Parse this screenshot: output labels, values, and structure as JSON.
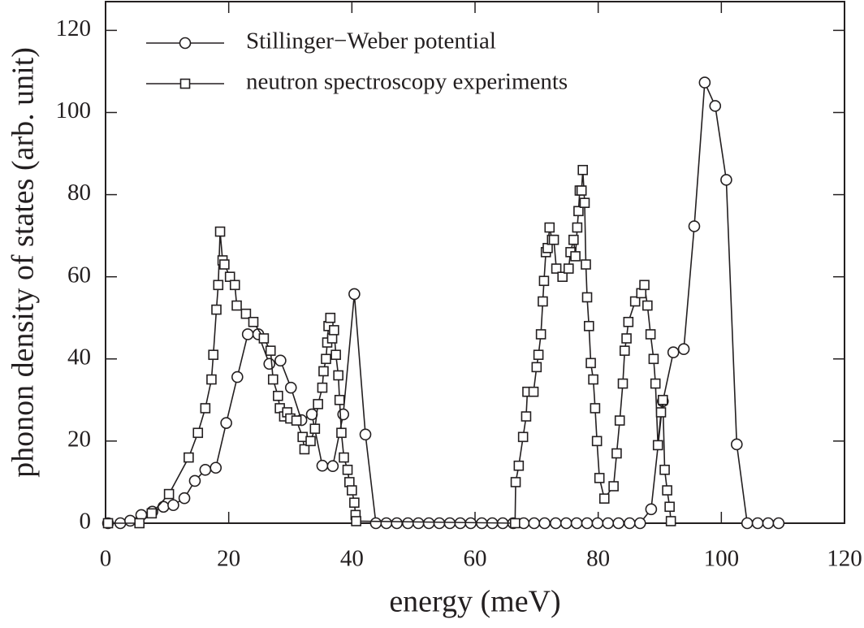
{
  "chart_data": {
    "type": "line",
    "xlabel": "energy (meV)",
    "ylabel": "phonon density of states (arb. unit)",
    "xlim": [
      0,
      120
    ],
    "ylim": [
      0,
      127
    ],
    "xticks": [
      0,
      20,
      40,
      60,
      80,
      100,
      120
    ],
    "yticks": [
      0,
      20,
      40,
      60,
      80,
      100,
      120
    ],
    "legend": "upper left",
    "series": [
      {
        "name": "Stillinger−Weber potential",
        "color": "#231f20",
        "marker": "circle",
        "x": [
          0.4,
          2.4,
          4,
          5.8,
          7.6,
          9.4,
          11,
          12.8,
          14.5,
          16.2,
          17.9,
          19.6,
          21.4,
          23.1,
          24.8,
          26.6,
          28.4,
          30.1,
          31.8,
          33.5,
          35.2,
          36.9,
          38.6,
          40.4,
          42.2,
          43.9,
          45.6,
          47.3,
          49.1,
          50.8,
          52.5,
          54.2,
          55.9,
          57.6,
          59.3,
          61.1,
          62.8,
          64.5,
          66.2,
          67.9,
          69.6,
          71.3,
          73.1,
          74.8,
          76.5,
          78.2,
          79.9,
          81.6,
          83.3,
          85.1,
          86.8,
          88.6,
          90.5,
          92.2,
          93.9,
          95.6,
          97.3,
          99,
          100.8,
          102.5,
          104.2,
          105.9,
          107.6,
          109.3
        ],
        "values": [
          0,
          0,
          0.6,
          2,
          2.8,
          4,
          4.4,
          6.1,
          10.3,
          13,
          13.5,
          24.4,
          35.6,
          46,
          46,
          38.8,
          39.6,
          33,
          25.1,
          26.5,
          14,
          13.9,
          26.5,
          55.8,
          21.6,
          0,
          0,
          0,
          0,
          0,
          0,
          0,
          0,
          0,
          0,
          0,
          0,
          0,
          0,
          0,
          0,
          0,
          0,
          0,
          0,
          0,
          0,
          0,
          0,
          0,
          0,
          3.4,
          29.7,
          41.6,
          42.4,
          72.3,
          107.3,
          101.6,
          83.6,
          19.2,
          0,
          0,
          0,
          0
        ]
      },
      {
        "name": "neutron spectroscopy experiments",
        "color": "#231f20",
        "marker": "square",
        "x": [
          0.4,
          5.5,
          7.5,
          10.3,
          13.5,
          15,
          16.2,
          17.2,
          17.5,
          18,
          18.3,
          18.6,
          19,
          19.3,
          20.2,
          21,
          21.3,
          22.8,
          24,
          25.7,
          26.8,
          27.2,
          28,
          28.3,
          29,
          29.5,
          30,
          31,
          32,
          32.3,
          33.3,
          34,
          34.5,
          35.2,
          35.4,
          35.8,
          36,
          36.2,
          36.5,
          36.8,
          37.1,
          37.4,
          37.8,
          38,
          38.3,
          38.7,
          39.3,
          39.6,
          40,
          40.4,
          40.6,
          40.7,
          66.5,
          66.6,
          67.1,
          67.8,
          68.3,
          68.5,
          69.5,
          70,
          70.3,
          70.7,
          71,
          71.2,
          71.5,
          71.8,
          72.1,
          72.5,
          72.8,
          73.2,
          74.2,
          75.2,
          75.5,
          76,
          76.3,
          76.6,
          76.8,
          77,
          77.3,
          77.5,
          77.8,
          78,
          78.2,
          78.5,
          78.8,
          79.2,
          79.5,
          79.8,
          80.2,
          81,
          82.5,
          83,
          83.5,
          84,
          84.3,
          84.6,
          84.9,
          86,
          87,
          87.5,
          88,
          88.5,
          89,
          89.3,
          89.7,
          90.2,
          90.5,
          90.8,
          91.2,
          91.6,
          91.8
        ],
        "values": [
          0,
          0,
          2.4,
          7.1,
          16,
          22,
          28,
          35,
          41,
          52,
          58,
          71,
          64,
          63,
          60,
          58,
          53,
          51,
          49,
          45,
          42,
          35,
          31,
          28,
          26,
          27,
          25.5,
          25,
          21,
          18,
          20,
          23,
          29,
          33,
          37,
          40,
          44,
          48,
          50,
          45,
          47,
          41,
          36,
          30,
          22,
          16,
          13,
          10,
          8,
          5,
          2,
          0.5,
          0,
          10,
          14,
          21,
          26,
          32,
          32,
          38,
          41,
          46,
          54,
          59,
          66,
          67,
          72,
          69,
          69,
          62,
          60,
          62,
          66,
          69,
          65,
          72,
          76,
          81,
          81,
          86,
          78,
          63,
          55,
          48,
          39,
          35,
          28,
          20,
          11,
          6,
          9,
          17,
          25,
          34,
          42,
          45,
          49,
          54,
          56,
          58,
          53,
          46,
          40,
          34,
          19,
          27,
          30,
          13,
          8,
          4,
          0.5
        ]
      }
    ]
  }
}
